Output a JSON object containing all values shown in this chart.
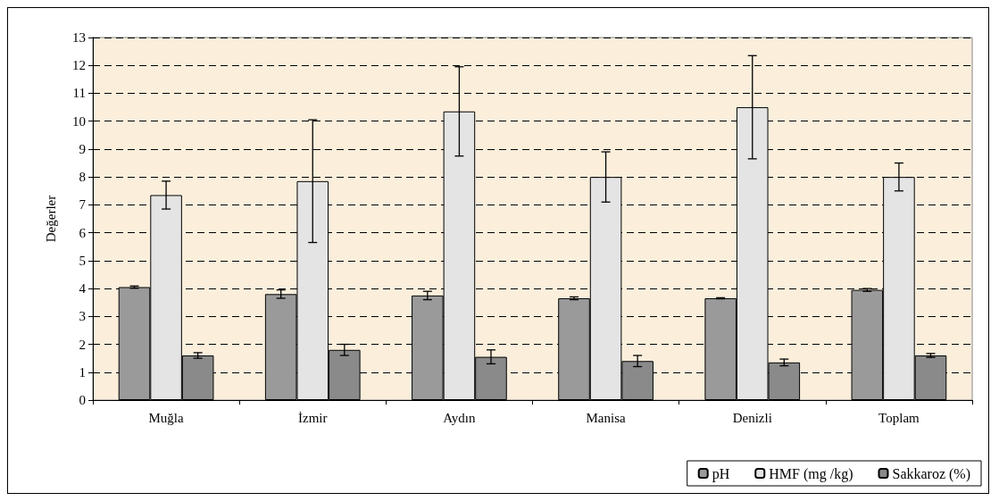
{
  "chart_data": {
    "type": "bar",
    "ylabel": "Değerler",
    "categories": [
      "Muğla",
      "İzmir",
      "Aydın",
      "Manisa",
      "Denizli",
      "Toplam"
    ],
    "series": [
      {
        "name": "pH",
        "color": "#9a9a9a",
        "values": [
          4.05,
          3.8,
          3.75,
          3.65,
          3.65,
          3.95
        ],
        "errors": [
          0.04,
          0.15,
          0.15,
          0.05,
          0.02,
          0.05
        ]
      },
      {
        "name": "HMF (mg /kg)",
        "color": "#e4e4e4",
        "values": [
          7.35,
          7.85,
          10.35,
          8.0,
          10.5,
          8.0
        ],
        "errors": [
          0.5,
          2.2,
          1.6,
          0.9,
          1.85,
          0.5
        ]
      },
      {
        "name": "Sakkaroz (%)",
        "color": "#8a8a8a",
        "values": [
          1.6,
          1.8,
          1.55,
          1.4,
          1.35,
          1.6
        ],
        "errors": [
          0.1,
          0.2,
          0.25,
          0.2,
          0.12,
          0.07
        ]
      }
    ],
    "ylim": [
      0,
      13
    ],
    "yticks": [
      0,
      1,
      2,
      3,
      4,
      5,
      6,
      7,
      8,
      9,
      10,
      11,
      12,
      13
    ],
    "grid": "y",
    "legend": "bottom right"
  }
}
